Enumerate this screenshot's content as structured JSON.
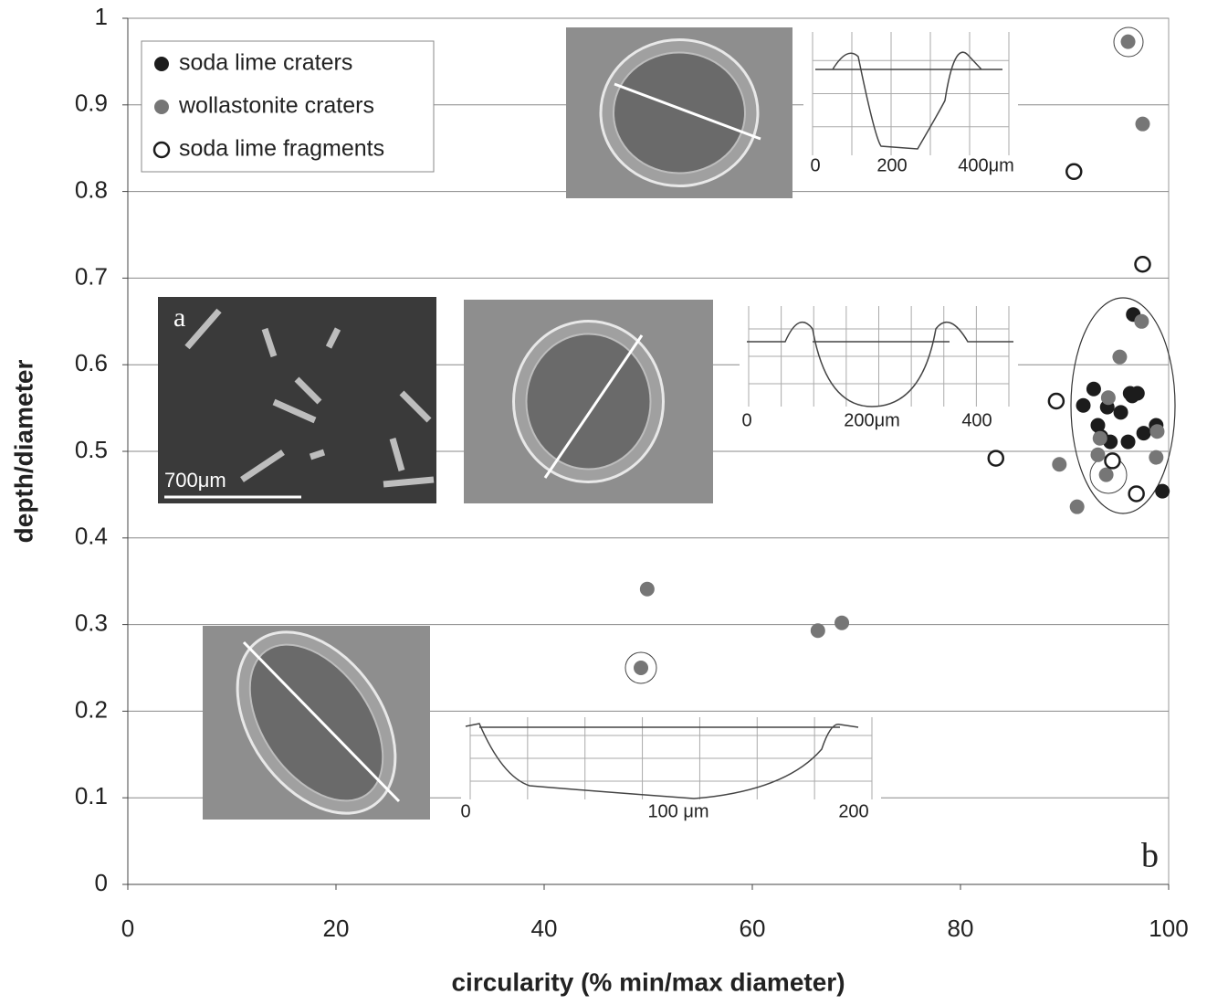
{
  "chart_data": {
    "type": "scatter",
    "xlabel": "circularity (% min/max diameter)",
    "ylabel": "depth/diameter",
    "xlim": [
      0,
      100
    ],
    "ylim": [
      0,
      1
    ],
    "xticks": [
      0,
      20,
      40,
      60,
      80,
      100
    ],
    "yticks": [
      0,
      0.1,
      0.2,
      0.3,
      0.4,
      0.5,
      0.6,
      0.7,
      0.8,
      0.9,
      1
    ],
    "grid": true,
    "legend": "upper left",
    "series": [
      {
        "name": "soda lime craters",
        "color": "#1c1c1c",
        "marker": "filled",
        "x": [
          96.6,
          91.8,
          92.8,
          93.2,
          94.1,
          95.4,
          96.3,
          97.0,
          96.5,
          94.4,
          93.5,
          96.1,
          97.6,
          98.8,
          99.4
        ],
        "y": [
          0.658,
          0.553,
          0.572,
          0.53,
          0.551,
          0.545,
          0.567,
          0.567,
          0.564,
          0.511,
          0.517,
          0.511,
          0.521,
          0.53,
          0.454
        ]
      },
      {
        "name": "wollastonite craters",
        "color": "#767676",
        "marker": "filled",
        "x": [
          96.1,
          97.5,
          97.4,
          95.3,
          94.2,
          93.4,
          98.9,
          98.8,
          93.2,
          94.0,
          89.5,
          91.2,
          49.9,
          49.3,
          66.3,
          68.6
        ],
        "y": [
          0.973,
          0.878,
          0.65,
          0.609,
          0.562,
          0.515,
          0.523,
          0.493,
          0.496,
          0.473,
          0.485,
          0.436,
          0.341,
          0.25,
          0.293,
          0.302
        ]
      },
      {
        "name": "soda lime fragments",
        "color": "#1c1c1c",
        "marker": "open",
        "x": [
          90.9,
          97.5,
          89.2,
          83.4,
          94.6,
          96.9
        ],
        "y": [
          0.823,
          0.716,
          0.558,
          0.492,
          0.489,
          0.451
        ]
      }
    ]
  },
  "insets": {
    "panel_a": {
      "label": "a",
      "scale": "700μm"
    },
    "panel_b": {
      "label": "b"
    },
    "profile_1": {
      "ticks": [
        "0",
        "200",
        "400μm"
      ]
    },
    "profile_2": {
      "ticks": [
        "0",
        "200μm",
        "400"
      ]
    },
    "profile_3": {
      "ticks": [
        "0",
        "100 μm",
        "200"
      ]
    }
  }
}
